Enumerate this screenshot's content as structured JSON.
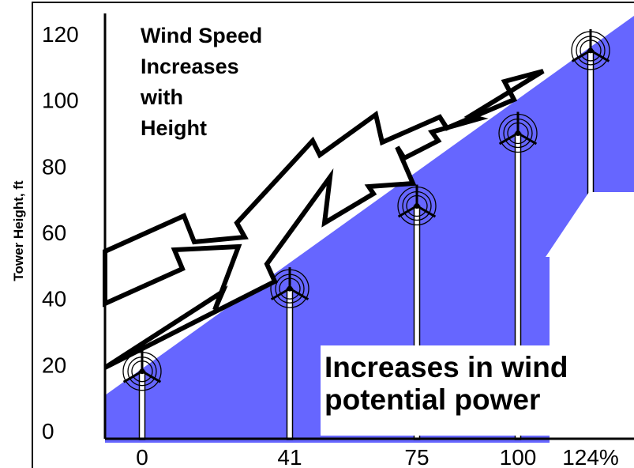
{
  "chart_data": {
    "type": "area",
    "ylabel": "Tower Height, ft",
    "yticks": [
      0,
      20,
      40,
      60,
      80,
      100,
      120
    ],
    "ylim": [
      0,
      120
    ],
    "x": [
      "0",
      "41",
      "75",
      "100",
      "124%"
    ],
    "turbine_heights_ft": [
      18,
      43,
      68,
      90,
      115
    ],
    "annotations": {
      "wind_speed": [
        "Wind Speed",
        "Increases",
        "with",
        "Height"
      ],
      "power": [
        "Increases in wind",
        "potential power"
      ]
    },
    "colors": {
      "area": "#6666ff",
      "ink": "#000000",
      "background": "#ffffff"
    }
  }
}
